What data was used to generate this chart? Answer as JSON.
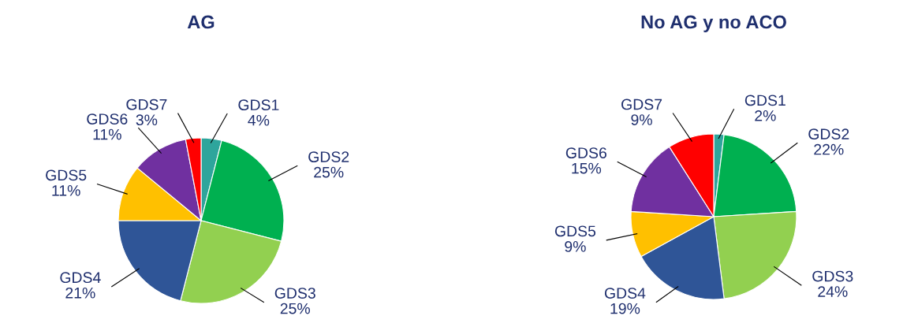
{
  "chart_data": [
    {
      "type": "pie",
      "title": "AG",
      "categories": [
        "GDS1",
        "GDS2",
        "GDS3",
        "GDS4",
        "GDS5",
        "GDS6",
        "GDS7"
      ],
      "values": [
        4,
        25,
        25,
        21,
        11,
        11,
        3
      ],
      "value_labels": [
        "4%",
        "25%",
        "25%",
        "21%",
        "11%",
        "11%",
        "3%"
      ],
      "colors": [
        "#2ea59c",
        "#00b050",
        "#92d050",
        "#2f5597",
        "#ffc000",
        "#7030a0",
        "#ff0000"
      ]
    },
    {
      "type": "pie",
      "title": "No AG y no ACO",
      "categories": [
        "GDS1",
        "GDS2",
        "GDS3",
        "GDS4",
        "GDS5",
        "GDS6",
        "GDS7"
      ],
      "values": [
        2,
        22,
        24,
        19,
        9,
        15,
        9
      ],
      "value_labels": [
        "2%",
        "22%",
        "24%",
        "19%",
        "9%",
        "15%",
        "9%"
      ],
      "colors": [
        "#2ea59c",
        "#00b050",
        "#92d050",
        "#2f5597",
        "#ffc000",
        "#7030a0",
        "#ff0000"
      ]
    }
  ]
}
